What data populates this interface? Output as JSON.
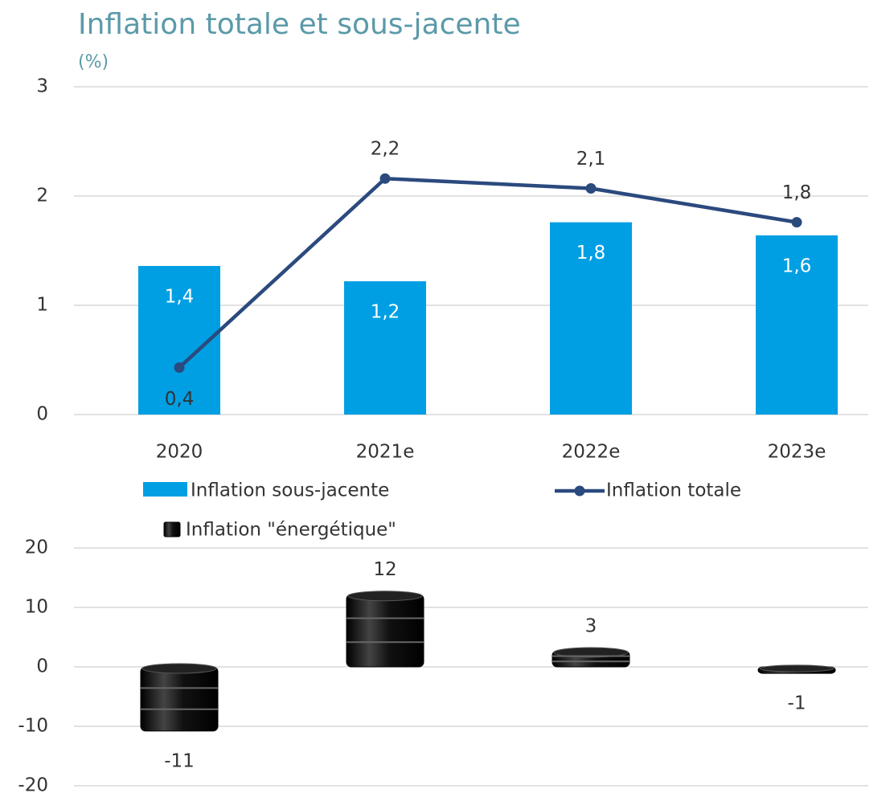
{
  "chart_data": [
    {
      "type": "bar",
      "title": "Inflation totale et sous-jacente",
      "subtitle": "(%)",
      "categories": [
        "2020",
        "2021e",
        "2022e",
        "2023e"
      ],
      "series": [
        {
          "name": "Inflation sous-jacente",
          "type": "bar",
          "color": "#009fe3",
          "values": [
            1.36,
            1.22,
            1.76,
            1.64
          ],
          "value_labels": [
            "1,4",
            "1,2",
            "1,8",
            "1,6"
          ]
        },
        {
          "name": "Inflation totale",
          "type": "line",
          "color": "#2b4a7e",
          "values": [
            0.43,
            2.16,
            2.07,
            1.76
          ],
          "value_labels": [
            "0,4",
            "2,2",
            "2,1",
            "1,8"
          ]
        }
      ],
      "ylim": [
        0,
        3
      ],
      "yticks": [
        0,
        1,
        2,
        3
      ],
      "grid": true
    },
    {
      "type": "pictograph",
      "series": [
        {
          "name": "Inflation \"énergétique\"",
          "color": "#000000",
          "values": [
            -10.8,
            12.2,
            2.7,
            -1.1
          ],
          "value_labels": [
            "-11",
            "12",
            "3",
            "-1"
          ]
        }
      ],
      "ylim": [
        -20,
        20
      ],
      "yticks": [
        -20,
        -10,
        0,
        10,
        20
      ],
      "grid": true
    }
  ]
}
